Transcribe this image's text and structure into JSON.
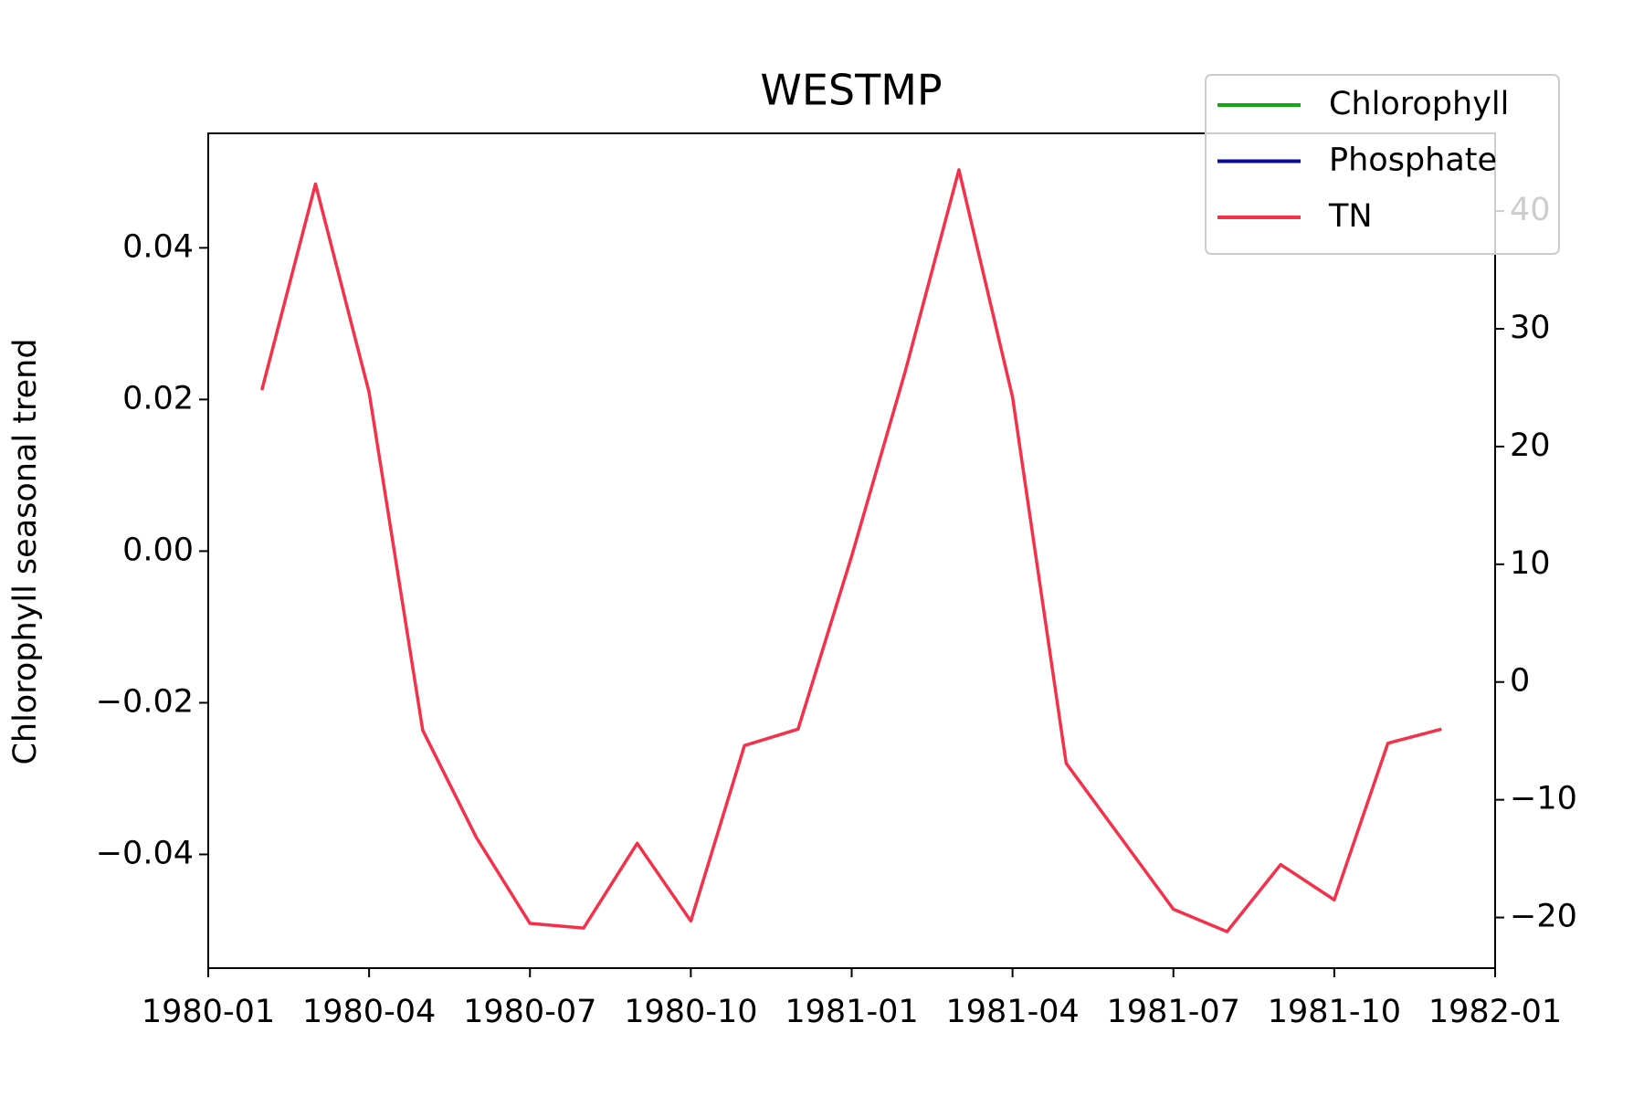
{
  "chart_data": {
    "type": "line",
    "title": "WESTMP",
    "y_label": "Chlorophyll seasonal trend",
    "x": [
      "1980-02",
      "1980-03",
      "1980-04",
      "1980-05",
      "1980-06",
      "1980-07",
      "1980-08",
      "1980-09",
      "1980-10",
      "1980-11",
      "1980-12",
      "1981-01",
      "1981-02",
      "1981-03",
      "1981-04",
      "1981-05",
      "1981-06",
      "1981-07",
      "1981-08",
      "1981-09",
      "1981-10",
      "1981-11",
      "1981-12"
    ],
    "xlim": [
      "1980-01",
      "1982-01"
    ],
    "xticks": [
      "1980-01",
      "1980-04",
      "1980-07",
      "1980-10",
      "1981-01",
      "1981-04",
      "1981-07",
      "1981-10",
      "1982-01"
    ],
    "ylim": [
      -0.055,
      0.0551
    ],
    "yticks": [
      {
        "value": -0.04,
        "label": "−0.04"
      },
      {
        "value": -0.02,
        "label": "−0.02"
      },
      {
        "value": 0,
        "label": "0.00"
      },
      {
        "value": 0.02,
        "label": "0.02"
      },
      {
        "value": 0.04,
        "label": "0.04"
      }
    ],
    "y2lim": [
      -24.3,
      46.6
    ],
    "y2ticks": [
      {
        "value": -20,
        "label": "−20"
      },
      {
        "value": -10,
        "label": "−10"
      },
      0,
      10,
      20,
      30,
      40
    ],
    "legend": "upper right",
    "series": [
      {
        "name": "Chlorophyll",
        "color": "#12a812",
        "values": [
          null,
          null,
          null,
          null,
          null,
          null,
          null,
          null,
          null,
          null,
          null,
          null,
          null,
          null,
          null,
          null,
          null,
          null,
          null,
          null,
          null,
          null,
          null
        ]
      },
      {
        "name": "Phosphate",
        "color": "#0a0aa0",
        "axis": "y2",
        "values": [
          null,
          null,
          null,
          null,
          null,
          null,
          null,
          null,
          null,
          null,
          null,
          null,
          null,
          null,
          null,
          null,
          null,
          null,
          null,
          null,
          null,
          null,
          null
        ]
      },
      {
        "name": "TN",
        "color": "#f5304b",
        "axis": "y2",
        "values": [
          24.8,
          42.3,
          24.6,
          -4.1,
          -13.2,
          -20.5,
          -20.9,
          -13.7,
          -20.3,
          -5.4,
          -4.0,
          10.7,
          26.4,
          43.5,
          24.2,
          -6.9,
          -13.1,
          -19.3,
          -21.2,
          -15.5,
          -18.5,
          -5.2,
          -4.0
        ]
      }
    ]
  }
}
